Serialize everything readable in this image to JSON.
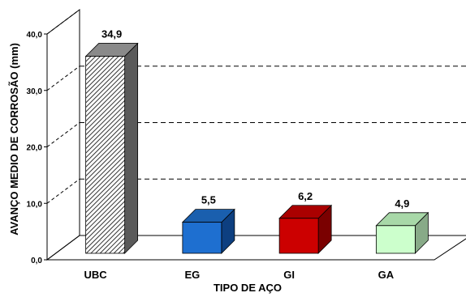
{
  "chart_data": {
    "type": "bar",
    "categories": [
      "UBC",
      "EG",
      "GI",
      "GA"
    ],
    "values": [
      34.9,
      5.5,
      6.2,
      4.9
    ],
    "data_labels": [
      "34,9",
      "5,5",
      "6,2",
      "4,9"
    ],
    "yticks": [
      0,
      10,
      20,
      30,
      40
    ],
    "ytick_labels": [
      "0,0",
      "10,0",
      "20,0",
      "30,0",
      "40,0"
    ],
    "ylim": [
      0,
      40
    ],
    "xlabel": "TIPO DE AÇO",
    "ylabel": "AVANÇO MEDIO DE CORROSÃO (mm)",
    "gridlines": "dashed",
    "three_d": true,
    "colors": {
      "UBC": {
        "front": "hatched",
        "top": "#8a8a8a",
        "side": "#5a5a5a"
      },
      "EG": {
        "front": "#1e6fd0",
        "top": "#1a5fae",
        "side": "#0d3f80"
      },
      "GI": {
        "front": "#cc0000",
        "top": "#aa0000",
        "side": "#7a0000"
      },
      "GA": {
        "front": "#ccffcc",
        "top": "#a8d8a8",
        "side": "#88aa88"
      }
    }
  }
}
